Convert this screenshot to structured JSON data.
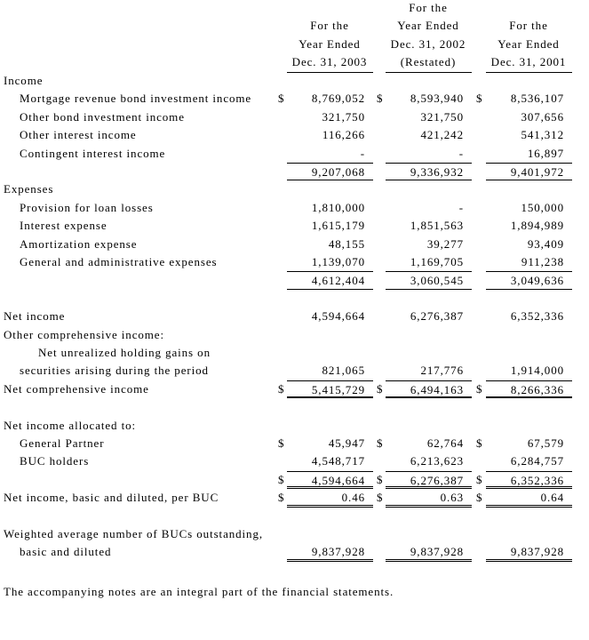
{
  "columns": [
    {
      "lines": [
        "",
        "For the",
        "Year Ended",
        "Dec. 31, 2003"
      ]
    },
    {
      "lines": [
        "For the",
        "Year Ended",
        "Dec. 31, 2002",
        "(Restated)"
      ]
    },
    {
      "lines": [
        "",
        "For the",
        "Year Ended",
        "Dec. 31, 2001"
      ]
    }
  ],
  "rows": [
    {
      "label": "Income",
      "indent": 0
    },
    {
      "label": "Mortgage revenue bond investment income",
      "indent": 1,
      "values": [
        "8,769,052",
        "8,593,940",
        "8,536,107"
      ],
      "dollar": true
    },
    {
      "label": "Other bond investment income",
      "indent": 1,
      "values": [
        "321,750",
        "321,750",
        "307,656"
      ]
    },
    {
      "label": "Other interest income",
      "indent": 1,
      "values": [
        "116,266",
        "421,242",
        "541,312"
      ]
    },
    {
      "label": "Contingent interest income",
      "indent": 1,
      "values": [
        "-",
        "-",
        "16,897"
      ]
    },
    {
      "label": "",
      "indent": 0,
      "values": [
        "9,207,068",
        "9,336,932",
        "9,401,972"
      ],
      "rule_top": true,
      "rule_bottom": "single"
    },
    {
      "label": "Expenses",
      "indent": 0
    },
    {
      "label": "Provision for loan losses",
      "indent": 1,
      "values": [
        "1,810,000",
        "-",
        "150,000"
      ]
    },
    {
      "label": "Interest expense",
      "indent": 1,
      "values": [
        "1,615,179",
        "1,851,563",
        "1,894,989"
      ]
    },
    {
      "label": "Amortization expense",
      "indent": 1,
      "values": [
        "48,155",
        "39,277",
        "93,409"
      ]
    },
    {
      "label": "General and administrative expenses",
      "indent": 1,
      "values": [
        "1,139,070",
        "1,169,705",
        "911,238"
      ]
    },
    {
      "label": "",
      "indent": 0,
      "values": [
        "4,612,404",
        "3,060,545",
        "3,049,636"
      ],
      "rule_top": true,
      "rule_bottom": "single"
    },
    {
      "label": "",
      "indent": 0
    },
    {
      "label": "Net income",
      "indent": 0,
      "values": [
        "4,594,664",
        "6,276,387",
        "6,352,336"
      ]
    },
    {
      "label": "Other comprehensive income:",
      "indent": 0
    },
    {
      "label": "Net unrealized holding gains on",
      "indent": 2
    },
    {
      "label": "securities arising during the period",
      "indent": 1,
      "values": [
        "821,065",
        "217,776",
        "1,914,000"
      ]
    },
    {
      "label": "Net comprehensive income",
      "indent": 0,
      "values": [
        "5,415,729",
        "6,494,163",
        "8,266,336"
      ],
      "dollar": true,
      "rule_top": true,
      "rule_bottom": "thick"
    },
    {
      "label": "",
      "indent": 0
    },
    {
      "label": "Net income allocated to:",
      "indent": 0
    },
    {
      "label": "General Partner",
      "indent": 1,
      "values": [
        "45,947",
        "62,764",
        "67,579"
      ],
      "dollar": true
    },
    {
      "label": "BUC holders",
      "indent": 1,
      "values": [
        "4,548,717",
        "6,213,623",
        "6,284,757"
      ]
    },
    {
      "label": "",
      "indent": 0,
      "values": [
        "4,594,664",
        "6,276,387",
        "6,352,336"
      ],
      "dollar": true,
      "rule_top": true,
      "rule_bottom": "double"
    },
    {
      "label": "Net income, basic and diluted, per BUC",
      "indent": 0,
      "values": [
        "0.46",
        "0.63",
        "0.64"
      ],
      "dollar": true,
      "rule_bottom": "double"
    },
    {
      "label": "",
      "indent": 0
    },
    {
      "label": "Weighted average number of BUCs outstanding,",
      "indent": 0
    },
    {
      "label": "basic and diluted",
      "indent": 1,
      "values": [
        "9,837,928",
        "9,837,928",
        "9,837,928"
      ],
      "rule_bottom": "double"
    }
  ],
  "dollar_sign": "$",
  "note": "The accompanying notes are an integral part of the financial statements."
}
